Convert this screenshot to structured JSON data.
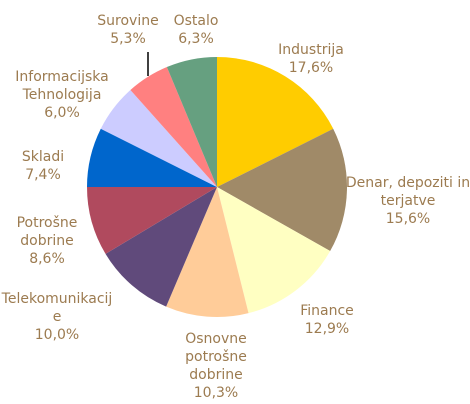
{
  "chart_data": {
    "type": "pie",
    "categories": [
      "Industrija",
      "Denar, depoziti in terjatve",
      "Finance",
      "Osnovne potrošne dobrine",
      "Telekomunikacije",
      "Potrošne dobrine",
      "Skladi",
      "Informacijska Tehnologija",
      "Surovine",
      "Ostalo"
    ],
    "values": [
      17.6,
      15.6,
      12.9,
      10.3,
      10.0,
      8.6,
      7.4,
      6.0,
      5.3,
      6.3
    ],
    "value_labels": [
      "17,6%",
      "15,6%",
      "12,9%",
      "10,3%",
      "10,0%",
      "8,6%",
      "7,4%",
      "6,0%",
      "5,3%",
      "6,3%"
    ],
    "colors": [
      "#ffcc00",
      "#a08a68",
      "#ffffc2",
      "#ffcc99",
      "#604a7b",
      "#b04a5e",
      "#0066cc",
      "#ccccff",
      "#ff8080",
      "#66a080"
    ]
  }
}
